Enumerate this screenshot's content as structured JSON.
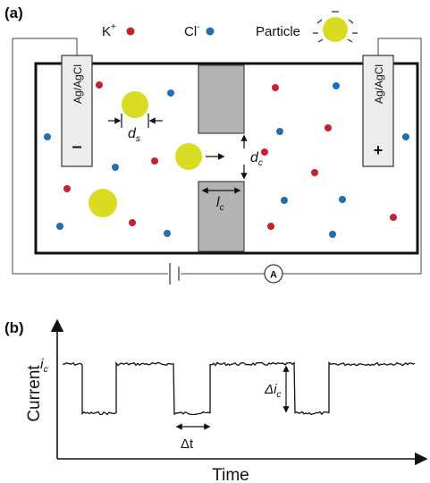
{
  "panel_a": {
    "label": "(a)",
    "legend": {
      "k_ion": "K",
      "k_sup": "+",
      "cl_ion": "Cl",
      "cl_sup": "-",
      "particle": "Particle"
    },
    "left_electrode": {
      "text": "Ag/AgCl",
      "sign": "–"
    },
    "right_electrode": {
      "text": "Ag/AgCl",
      "sign": "+"
    },
    "particle_size": {
      "main": "d",
      "sub": "s"
    },
    "channel_diameter": {
      "main": "d",
      "sub": "c"
    },
    "channel_length": {
      "main": "l",
      "sub": "c"
    },
    "ammeter": "A"
  },
  "panel_b": {
    "label": "(b)",
    "y_label": "Current",
    "x_label": "Time",
    "baseline_current": {
      "main": "i",
      "sub": "c"
    },
    "current_drop": {
      "main": "Δi",
      "sub": "c"
    },
    "duration": "Δt"
  },
  "colors": {
    "k_ion": "#c8202e",
    "cl_ion": "#1f6fb2",
    "particle": "#d9dc22",
    "channel_wall": "#b3b3b3"
  }
}
